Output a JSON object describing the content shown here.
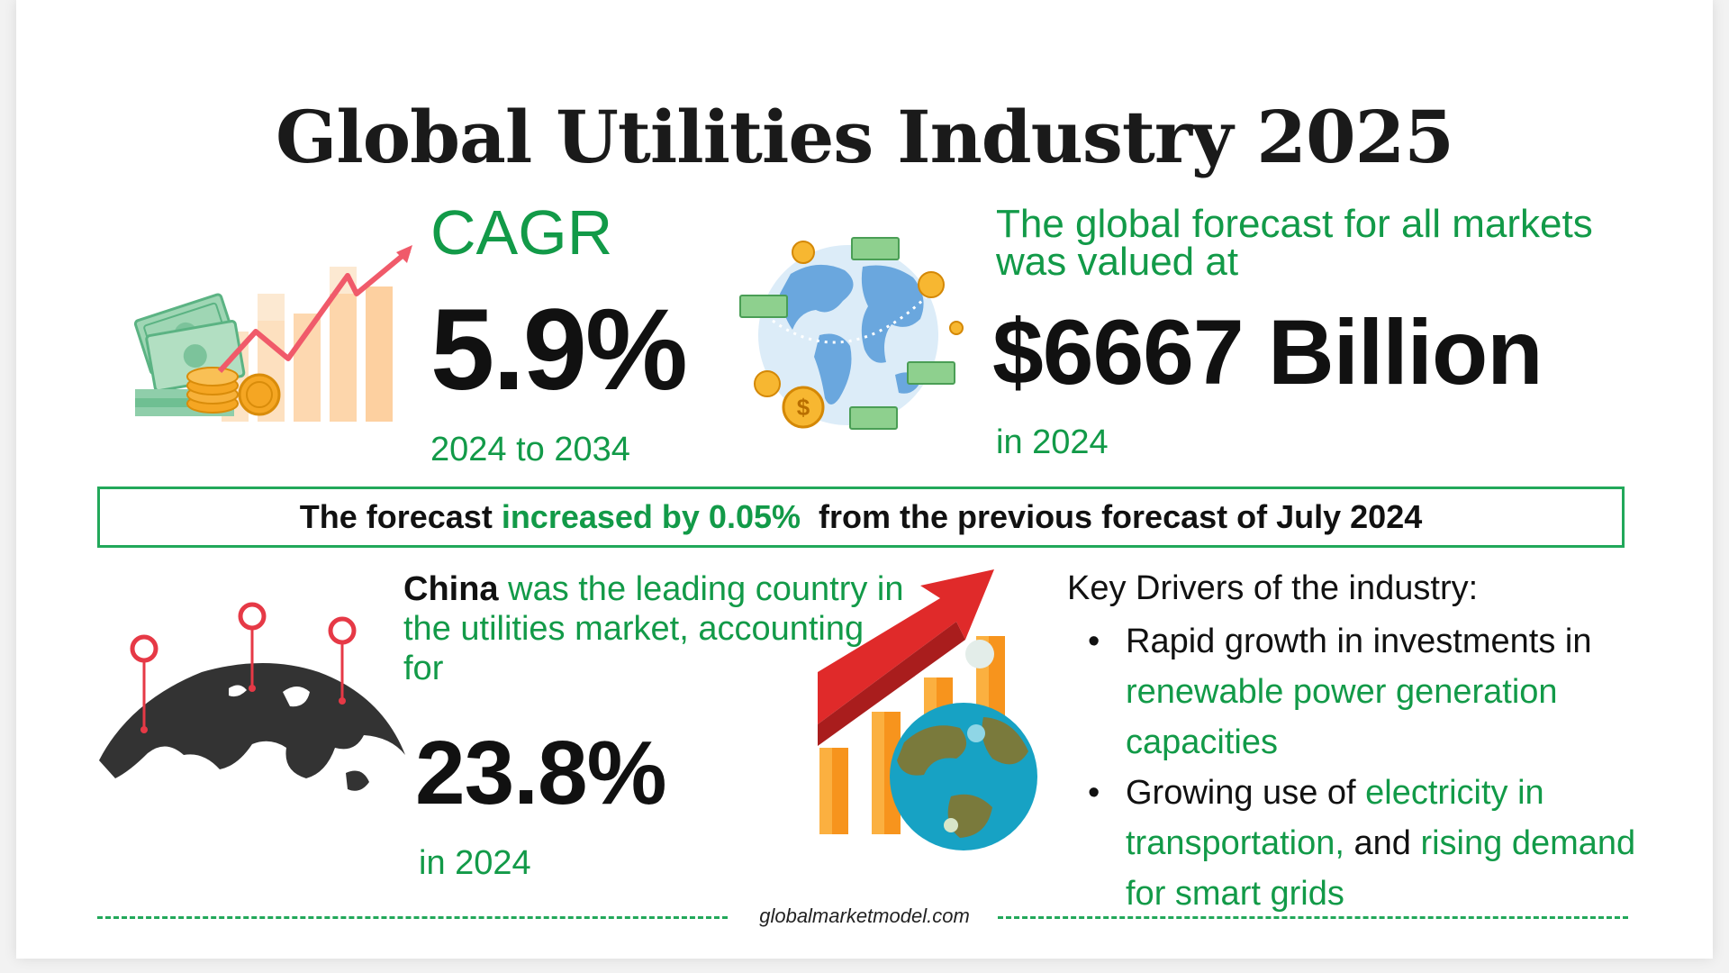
{
  "title": "Global Utilities Industry 2025",
  "cagr": {
    "label": "CAGR",
    "value": "5.9%",
    "period": "2024 to 2034"
  },
  "forecast": {
    "intro": "The global forecast for all markets was valued at",
    "value": "$6667 Billion",
    "year": "in 2024"
  },
  "banner": {
    "prefix": "The forecast ",
    "highlight": "increased by 0.05%",
    "suffix": "  from the previous forecast of July 2024"
  },
  "china": {
    "country": "China",
    "text": " was the leading country in the utilities market, accounting for",
    "value": "23.8%",
    "year": "in 2024"
  },
  "drivers": {
    "title": "Key Drivers of the industry:",
    "bullet": "•",
    "item1_black": "Rapid growth in investments in ",
    "item1_green": "renewable power generation capacities",
    "item2_black1": "Growing use of ",
    "item2_green1": "electricity in transportation,",
    "item2_black2": " and ",
    "item2_green2": "rising demand for smart grids"
  },
  "footer": {
    "source": "globalmarketmodel.com"
  },
  "colors": {
    "accent_green": "#129a48",
    "border_green": "#22a85a",
    "text_black": "#111111",
    "arrow_red": "#e02a2a",
    "bar_orange": "#f7941d"
  },
  "icons": {
    "money_chart": "money-growth-chart-icon",
    "globe_money": "globe-with-money-icon",
    "world_pins": "world-map-pins-icon",
    "growth_globe": "growth-chart-globe-icon"
  }
}
